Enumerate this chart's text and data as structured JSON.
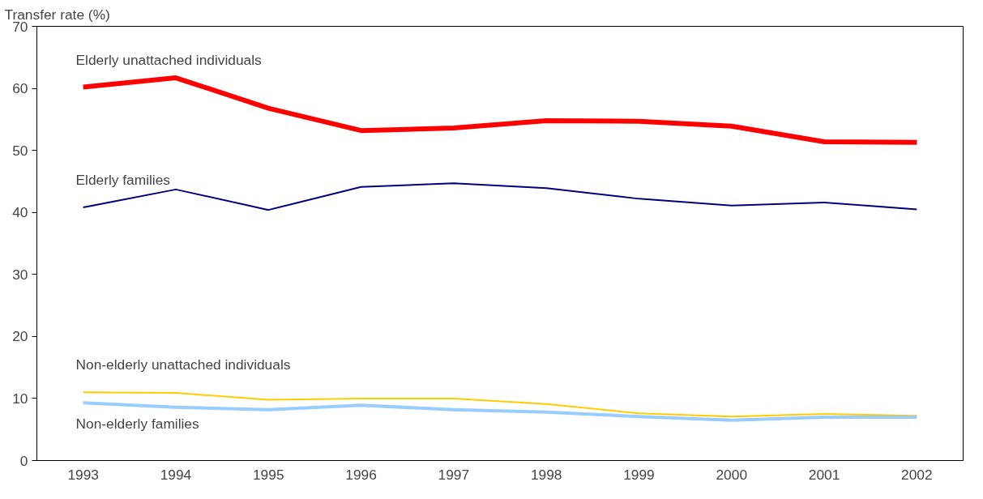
{
  "chart_data": {
    "type": "line",
    "ylabel": "Transfer rate (%)",
    "categories": [
      "1993",
      "1994",
      "1995",
      "1996",
      "1997",
      "1998",
      "1999",
      "2000",
      "2001",
      "2002"
    ],
    "ylim": [
      0,
      70
    ],
    "yticks": [
      0,
      10,
      20,
      30,
      40,
      50,
      60,
      70
    ],
    "grid": false,
    "legend": false,
    "marker": "none",
    "line_style": "solid",
    "series": [
      {
        "name": "Elderly unattached individuals",
        "color": "#ff0000",
        "values": [
          60.2,
          61.7,
          56.8,
          53.2,
          53.6,
          54.8,
          54.7,
          53.9,
          51.4,
          51.3
        ]
      },
      {
        "name": "Elderly families",
        "color": "#000080",
        "values": [
          40.8,
          43.7,
          40.4,
          44.1,
          44.7,
          43.9,
          42.2,
          41.1,
          41.6,
          40.5
        ]
      },
      {
        "name": "Non-elderly unattached individuals",
        "color": "#ffcc00",
        "values": [
          11.0,
          10.9,
          9.8,
          10.0,
          10.0,
          9.1,
          7.6,
          7.1,
          7.5,
          7.2
        ]
      },
      {
        "name": "Non-elderly families",
        "color": "#99ccff",
        "values": [
          9.3,
          8.6,
          8.2,
          8.9,
          8.2,
          7.8,
          7.1,
          6.5,
          7.0,
          7.0
        ]
      }
    ]
  }
}
